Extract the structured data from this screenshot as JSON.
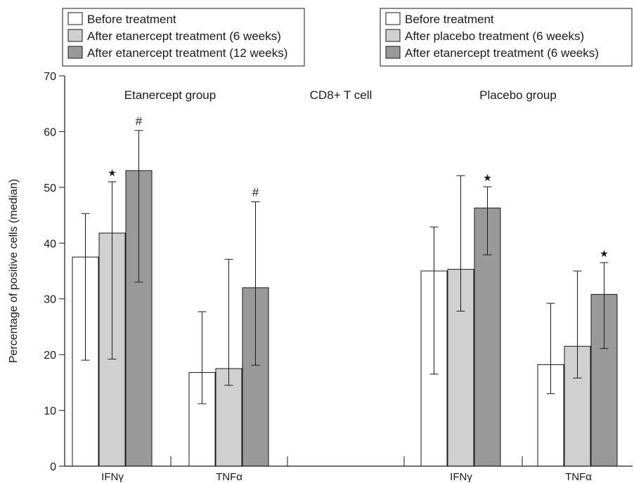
{
  "chart_data": {
    "type": "bar",
    "ylabel": "Percentage of positive cells (median)",
    "ylim": [
      0,
      70
    ],
    "yticks": [
      0,
      10,
      20,
      30,
      40,
      50,
      60,
      70
    ],
    "grid": false,
    "center_label": "CD8+ T cell",
    "groups": [
      {
        "name": "Etanercept group",
        "legend_position": "top-left",
        "legend": [
          {
            "label": "Before treatment",
            "color": "#ffffff"
          },
          {
            "label": "After etanercept treatment (6 weeks)",
            "color": "#d0d0d0"
          },
          {
            "label": "After etanercept treatment (12 weeks)",
            "color": "#999999"
          }
        ],
        "categories": [
          {
            "label": "IFNγ",
            "bars": [
              {
                "value": 37.5,
                "err_low": 19,
                "err_high": 45.3,
                "marker": ""
              },
              {
                "value": 41.8,
                "err_low": 19.2,
                "err_high": 51,
                "marker": "★"
              },
              {
                "value": 53,
                "err_low": 33,
                "err_high": 60.2,
                "marker": "#"
              }
            ]
          },
          {
            "label": "TNFα",
            "bars": [
              {
                "value": 16.8,
                "err_low": 11.2,
                "err_high": 27.7,
                "marker": ""
              },
              {
                "value": 17.5,
                "err_low": 14.5,
                "err_high": 37.1,
                "marker": ""
              },
              {
                "value": 32,
                "err_low": 18.1,
                "err_high": 47.4,
                "marker": "#"
              }
            ]
          }
        ]
      },
      {
        "name": "Placebo group",
        "legend_position": "top-right",
        "legend": [
          {
            "label": "Before treatment",
            "color": "#ffffff"
          },
          {
            "label": "After placebo treatment (6 weeks)",
            "color": "#d0d0d0"
          },
          {
            "label": "After etanercept treatment (6 weeks)",
            "color": "#999999"
          }
        ],
        "categories": [
          {
            "label": "IFNγ",
            "bars": [
              {
                "value": 35,
                "err_low": 16.5,
                "err_high": 42.9,
                "marker": ""
              },
              {
                "value": 35.3,
                "err_low": 27.8,
                "err_high": 52.1,
                "marker": ""
              },
              {
                "value": 46.3,
                "err_low": 37.9,
                "err_high": 50.1,
                "marker": "★"
              }
            ]
          },
          {
            "label": "TNFα",
            "bars": [
              {
                "value": 18.2,
                "err_low": 13,
                "err_high": 29.2,
                "marker": ""
              },
              {
                "value": 21.5,
                "err_low": 15.8,
                "err_high": 35,
                "marker": ""
              },
              {
                "value": 30.8,
                "err_low": 21.1,
                "err_high": 36.5,
                "marker": "★"
              }
            ]
          }
        ]
      }
    ]
  }
}
